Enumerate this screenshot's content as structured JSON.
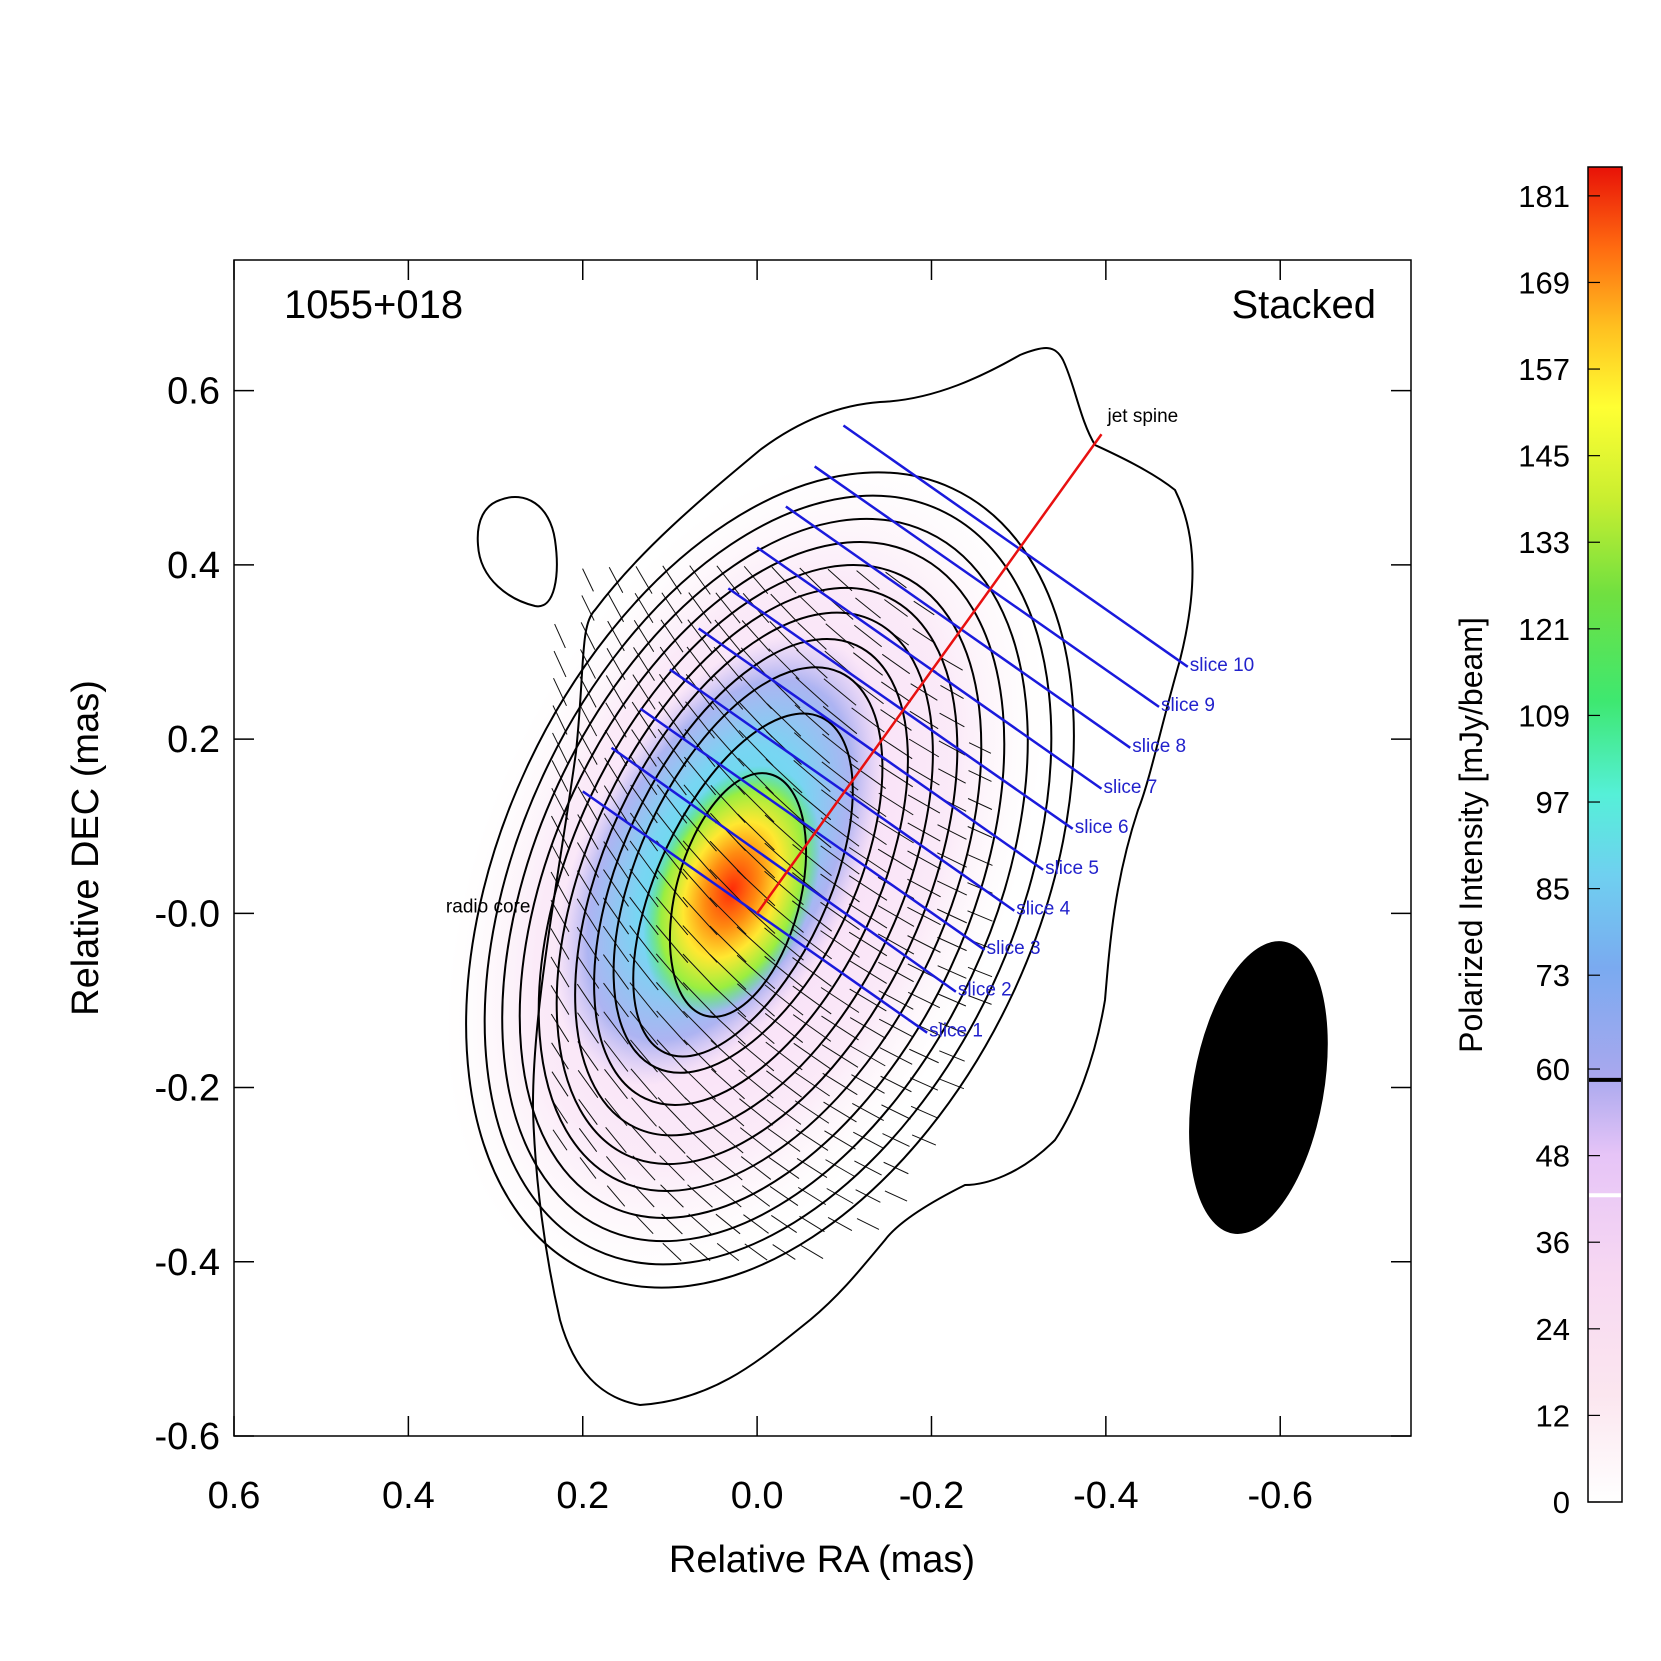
{
  "chart_data": {
    "type": "heatmap",
    "title": "1055+018",
    "panel_label": "Stacked",
    "xlabel": "Relative RA (mas)",
    "ylabel": "Relative DEC (mas)",
    "xlim": [
      0.6,
      -0.75
    ],
    "ylim": [
      -0.6,
      0.75
    ],
    "x_ticks": [
      {
        "value": 0.6,
        "label": "0.6"
      },
      {
        "value": 0.4,
        "label": "0.4"
      },
      {
        "value": 0.2,
        "label": "0.2"
      },
      {
        "value": 0.0,
        "label": "0.0"
      },
      {
        "value": -0.2,
        "label": "-0.2"
      },
      {
        "value": -0.4,
        "label": "-0.4"
      },
      {
        "value": -0.6,
        "label": "-0.6"
      }
    ],
    "y_ticks": [
      {
        "value": 0.6,
        "label": "0.6"
      },
      {
        "value": 0.4,
        "label": "0.4"
      },
      {
        "value": 0.2,
        "label": "0.2"
      },
      {
        "value": 0.0,
        "label": "-0.0"
      },
      {
        "value": -0.2,
        "label": "-0.2"
      },
      {
        "value": -0.4,
        "label": "-0.4"
      },
      {
        "value": -0.6,
        "label": "-0.6"
      }
    ],
    "annotations": {
      "radio_core": {
        "text": "radio core",
        "x": 0.0,
        "y": 0.0
      },
      "jet_spine": {
        "text": "jet spine",
        "start": [
          0.0,
          0.0
        ],
        "end": [
          -0.395,
          0.55
        ]
      }
    },
    "slices": [
      {
        "label": "slice 1",
        "start": [
          0.2,
          0.14
        ],
        "end": [
          -0.195,
          -0.137
        ]
      },
      {
        "label": "slice 2",
        "start": [
          0.167,
          0.19
        ],
        "end": [
          -0.228,
          -0.09
        ]
      },
      {
        "label": "slice 3",
        "start": [
          0.134,
          0.235
        ],
        "end": [
          -0.261,
          -0.042
        ]
      },
      {
        "label": "slice 4",
        "start": [
          0.1,
          0.28
        ],
        "end": [
          -0.295,
          0.003
        ]
      },
      {
        "label": "slice 5",
        "start": [
          0.067,
          0.327
        ],
        "end": [
          -0.328,
          0.05
        ]
      },
      {
        "label": "slice 6",
        "start": [
          0.033,
          0.373
        ],
        "end": [
          -0.362,
          0.097
        ]
      },
      {
        "label": "slice 7",
        "start": [
          0.0,
          0.42
        ],
        "end": [
          -0.395,
          0.143
        ]
      },
      {
        "label": "slice 8",
        "start": [
          -0.033,
          0.467
        ],
        "end": [
          -0.428,
          0.19
        ]
      },
      {
        "label": "slice 9",
        "start": [
          -0.066,
          0.513
        ],
        "end": [
          -0.461,
          0.237
        ]
      },
      {
        "label": "slice 10",
        "start": [
          -0.099,
          0.56
        ],
        "end": [
          -0.494,
          0.283
        ]
      }
    ],
    "polarized_intensity_peak": {
      "x": 0.02,
      "y": 0.03,
      "value": 181
    },
    "contour_levels": 13,
    "beam": {
      "center": [
        -0.575,
        -0.2
      ],
      "major_axis_mas": 0.34,
      "minor_axis_mas": 0.15,
      "pa_deg": 10
    },
    "colorbar": {
      "label": "Polarized Intensity [mJy/beam]",
      "min": 0,
      "max": 185,
      "ticks": [
        {
          "value": 0,
          "label": "0"
        },
        {
          "value": 12,
          "label": "12"
        },
        {
          "value": 24,
          "label": "24"
        },
        {
          "value": 36,
          "label": "36"
        },
        {
          "value": 48,
          "label": "48"
        },
        {
          "value": 60,
          "label": "60"
        },
        {
          "value": 73,
          "label": "73"
        },
        {
          "value": 85,
          "label": "85"
        },
        {
          "value": 97,
          "label": "97"
        },
        {
          "value": 109,
          "label": "109"
        },
        {
          "value": 121,
          "label": "121"
        },
        {
          "value": 133,
          "label": "133"
        },
        {
          "value": 145,
          "label": "145"
        },
        {
          "value": 157,
          "label": "157"
        },
        {
          "value": 169,
          "label": "169"
        },
        {
          "value": 181,
          "label": "181"
        }
      ],
      "markers": [
        {
          "value": 58.5,
          "color": "#000000"
        },
        {
          "value": 42.5,
          "color": "#ffffff"
        }
      ]
    },
    "colors": {
      "slice_line": "#1a1adc",
      "slice_label": "#2222cc",
      "jet_spine": "#e81010",
      "contour": "#000000"
    }
  }
}
